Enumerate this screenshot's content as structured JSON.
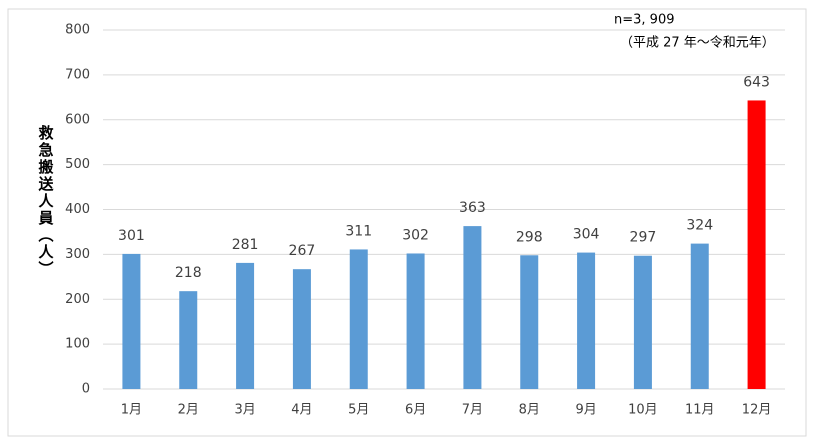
{
  "chart_data": {
    "type": "bar",
    "y_label": "救急搬送人員（人）",
    "annotations": [
      "n=3, 909",
      "（平成 27 年～令和元年）"
    ],
    "categories": [
      "1月",
      "2月",
      "3月",
      "4月",
      "5月",
      "6月",
      "7月",
      "8月",
      "9月",
      "10月",
      "11月",
      "12月"
    ],
    "values": [
      301,
      218,
      281,
      267,
      311,
      302,
      363,
      298,
      304,
      297,
      324,
      643
    ],
    "colors": [
      "#5b9bd5",
      "#5b9bd5",
      "#5b9bd5",
      "#5b9bd5",
      "#5b9bd5",
      "#5b9bd5",
      "#5b9bd5",
      "#5b9bd5",
      "#5b9bd5",
      "#5b9bd5",
      "#5b9bd5",
      "#ff0000"
    ],
    "ylim": [
      0,
      800
    ],
    "yticks": [
      0,
      100,
      200,
      300,
      400,
      500,
      600,
      700,
      800
    ],
    "grid": true
  }
}
